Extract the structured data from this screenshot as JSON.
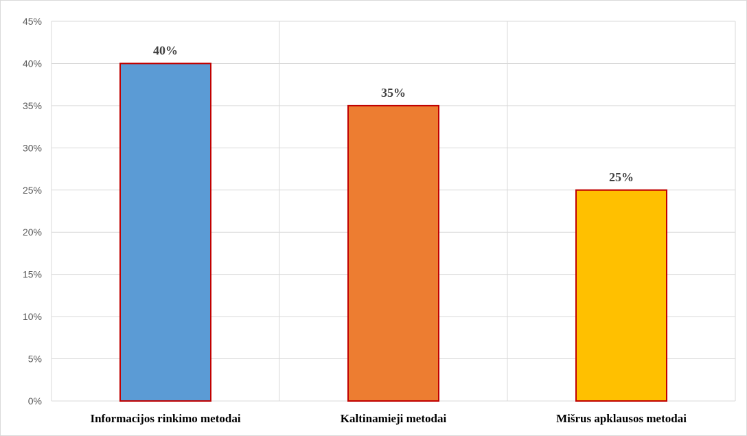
{
  "chart_data": {
    "type": "bar",
    "categories": [
      "Informacijos rinkimo metodai",
      "Kaltinamieji metodai",
      "Mišrus apklausos metodai"
    ],
    "values": [
      40,
      35,
      25
    ],
    "data_labels": [
      "40%",
      "35%",
      "25%"
    ],
    "yticks": [
      "0%",
      "5%",
      "10%",
      "15%",
      "20%",
      "25%",
      "30%",
      "35%",
      "40%",
      "45%"
    ],
    "ylim": [
      0,
      45
    ],
    "ytick_step": 5,
    "grid": true,
    "legend": "none",
    "bar_colors": [
      "#5b9bd5",
      "#ed7d31",
      "#ffc000"
    ],
    "bar_edge_color": "#c00000",
    "gridline_color": "#d9d9d9"
  }
}
